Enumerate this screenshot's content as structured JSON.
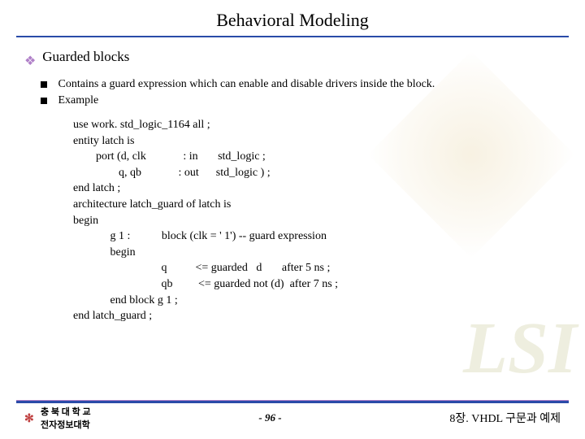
{
  "title": "Behavioral Modeling",
  "section_heading": "Guarded blocks",
  "bullet_color": "#b080c8",
  "accent_color": "#2a4ba8",
  "sub_items": [
    "Contains a guard expression which can enable and disable drivers inside the block.",
    "Example"
  ],
  "code_lines": [
    "use work. std_logic_1164 all ;",
    "entity latch is",
    "        port (d, clk             : in       std_logic ;",
    "                q, qb             : out      std_logic ) ;",
    "end latch ;",
    "architecture latch_guard of latch is",
    "begin",
    "             g 1 :           block (clk = ' 1') -- guard expression",
    "             begin",
    "                               q          <= guarded   d       after 5 ns ;",
    "                               qb         <= guarded not (d)  after 7 ns ;",
    "             end block g 1 ;",
    "end latch_guard ;"
  ],
  "footer": {
    "left_line1": "충 북 대 학 교",
    "left_line2": "전자정보대학",
    "center": "- 96 -",
    "right": "8장. VHDL 구문과 예제"
  },
  "watermark": "LSI"
}
